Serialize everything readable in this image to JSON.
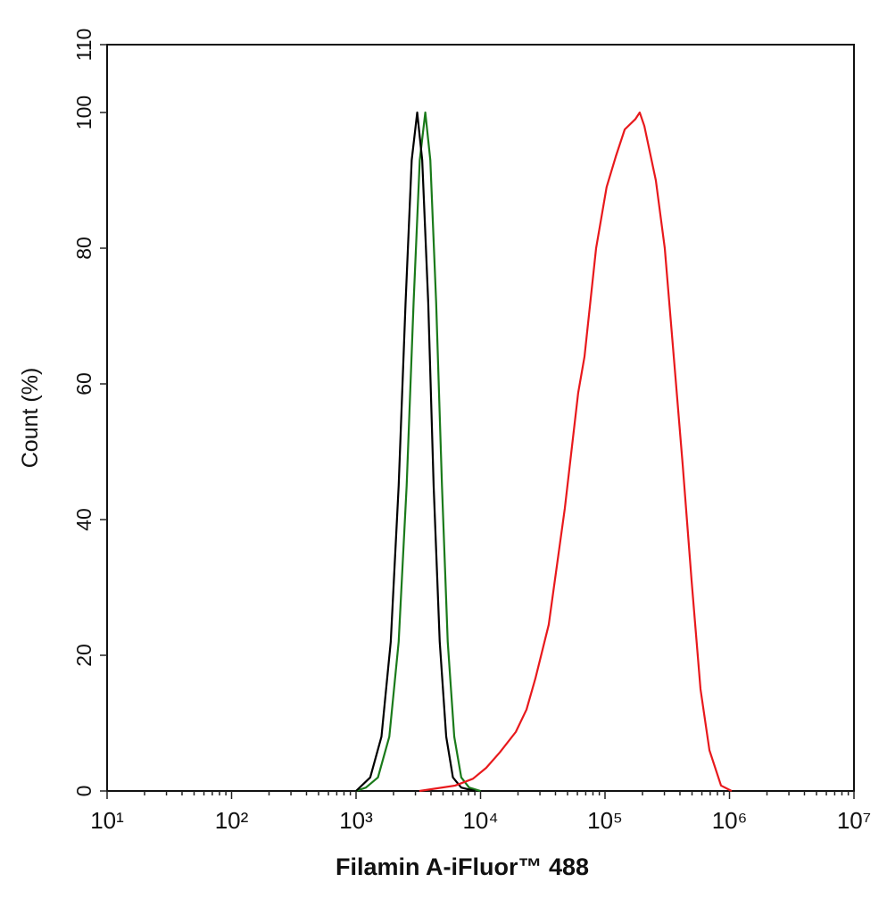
{
  "chart_data": {
    "type": "line",
    "xlabel": "Filamin A-iFluor™ 488",
    "ylabel": "Count  (%)",
    "xscale": "log",
    "xlim": [
      10,
      10000000
    ],
    "xticks": [
      {
        "value": 10,
        "label": "10¹"
      },
      {
        "value": 100,
        "label": "10²"
      },
      {
        "value": 1000,
        "label": "10³"
      },
      {
        "value": 10000,
        "label": "10⁴"
      },
      {
        "value": 100000,
        "label": "10⁵"
      },
      {
        "value": 1000000,
        "label": "10⁶"
      },
      {
        "value": 10000000,
        "label": "10⁷"
      }
    ],
    "ylim": [
      0,
      110
    ],
    "yticks": [
      0,
      20,
      40,
      60,
      80,
      100,
      110
    ],
    "series": [
      {
        "color": "#1a7a1a",
        "x": [
          1000,
          1200,
          1500,
          1850,
          2200,
          2550,
          2900,
          3250,
          3600,
          3950,
          4400,
          4900,
          5450,
          6150,
          7000,
          8100,
          10000
        ],
        "values": [
          0,
          0.5,
          2,
          8,
          22,
          45,
          72,
          93,
          100,
          93,
          72,
          45,
          22,
          8,
          2,
          0.5,
          0
        ]
      },
      {
        "color": "#000000",
        "x": [
          1000,
          1300,
          1600,
          1900,
          2200,
          2500,
          2800,
          3100,
          3400,
          3800,
          4200,
          4700,
          5300,
          6000,
          7000,
          9000
        ],
        "values": [
          0,
          2,
          8,
          22,
          45,
          72,
          93,
          100,
          93,
          72,
          45,
          22,
          8,
          2,
          0.5,
          0
        ]
      },
      {
        "color": "#e8191c",
        "x": [
          3230,
          6250,
          8690,
          11100,
          14300,
          19200,
          23400,
          27600,
          35300,
          47500,
          60900,
          68400,
          84800,
          103000,
          122000,
          144000,
          175000,
          190000,
          207000,
          256000,
          302000,
          368000,
          421000,
          496000,
          585000,
          690000,
          855000,
          1040000
        ],
        "values": [
          0,
          0.8,
          1.8,
          3.4,
          5.7,
          8.7,
          12,
          16.6,
          24.5,
          41.6,
          58.7,
          64,
          80,
          89,
          93.5,
          97.5,
          99,
          100,
          98,
          90,
          80,
          61,
          48,
          31,
          15,
          6,
          0.8,
          0
        ]
      }
    ]
  }
}
